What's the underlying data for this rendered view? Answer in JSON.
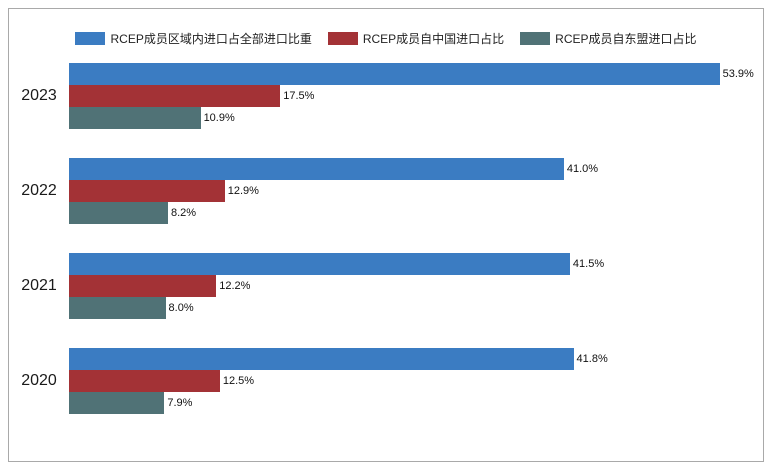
{
  "chart_data": {
    "type": "bar",
    "orientation": "horizontal",
    "title": "",
    "categories": [
      "2023",
      "2022",
      "2021",
      "2020"
    ],
    "series": [
      {
        "name": "RCEP成员区域内进口占全部进口比重",
        "color": "#3b7cc2",
        "values": [
          53.9,
          41.0,
          41.5,
          41.8
        ]
      },
      {
        "name": "RCEP成员自中国进口占比",
        "color": "#a33236",
        "values": [
          17.5,
          12.9,
          12.2,
          12.5
        ]
      },
      {
        "name": "RCEP成员自东盟进口占比",
        "color": "#507276",
        "values": [
          10.9,
          8.2,
          8.0,
          7.9
        ]
      }
    ],
    "value_suffix": "%",
    "value_decimals": 1,
    "xlim": [
      0,
      57
    ],
    "grid": false,
    "legend_position": "top"
  }
}
